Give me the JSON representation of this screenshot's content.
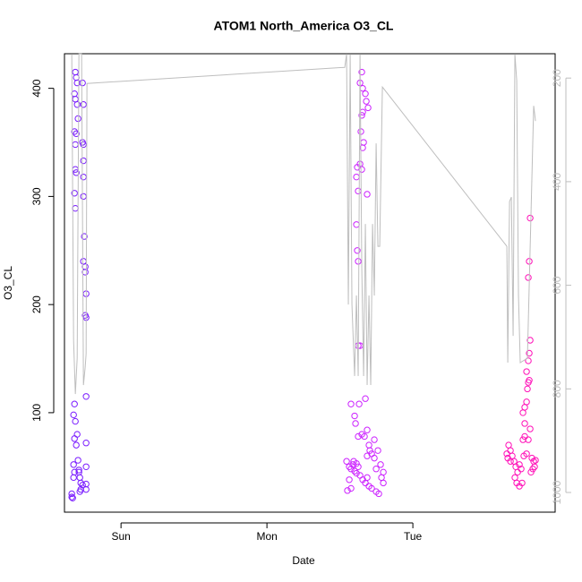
{
  "chart_data": {
    "type": "scatter",
    "title": "ATOM1 North_America O3_CL",
    "xlabel": "Date",
    "ylabel": "O3_CL",
    "xlim": [
      -9.3,
      71.4
    ],
    "xticks": [
      {
        "value": 0,
        "label": "Sun"
      },
      {
        "value": 24,
        "label": "Mon"
      },
      {
        "value": 48,
        "label": "Tue"
      }
    ],
    "ylim": [
      8,
      432
    ],
    "yticks": [
      100,
      200,
      300,
      400
    ],
    "y2lim": [
      1038,
      153
    ],
    "y2ticks": [
      200,
      400,
      600,
      800,
      1000
    ],
    "series": [
      {
        "color": "#7a1cff",
        "x": [
          -7.51,
          -7.36,
          -7.21,
          -7.65,
          -7.51,
          -7.21,
          -7.07,
          -7.65,
          -7.36,
          -7.51,
          -6.33,
          -6.18,
          -6.33,
          -6.18,
          -6.18,
          -6.18,
          -7.51,
          -7.36,
          -6.18,
          -7.65,
          -7.51,
          -6.04,
          -6.18,
          -5.89,
          -5.89,
          -5.74,
          -5.89,
          -5.74,
          -5.74,
          -7.65,
          -7.8,
          -7.51,
          -7.65,
          -7.21,
          -7.36,
          -5.74,
          -7.8,
          -7.65,
          -7.07,
          -6.92,
          -6.77,
          -6.62,
          -6.33,
          -5.74,
          -5.74,
          -6.77,
          -6.62,
          -7.8,
          -8.1,
          -7.95,
          -8.1,
          -6.92,
          -5.74
        ],
        "values": [
          415,
          410,
          405,
          395,
          390,
          385,
          372,
          360,
          358,
          348,
          405,
          385,
          350,
          348,
          333,
          318,
          325,
          322,
          300,
          303,
          289,
          263,
          240,
          235,
          230,
          210,
          190,
          188,
          115,
          108,
          98,
          92,
          76,
          80,
          70,
          72,
          52,
          45,
          56,
          47,
          40,
          35,
          33,
          34,
          29,
          27,
          29,
          40,
          22,
          21,
          25,
          45,
          50
        ]
      },
      {
        "color": "#cc22ff",
        "x": [
          37.83,
          38.42,
          38.57,
          39.16,
          40.19,
          39.6,
          40.48,
          39.01,
          40.78,
          41.66,
          41.22,
          41.66,
          37.1,
          37.54,
          37.83,
          38.13,
          38.42,
          38.72,
          39.01,
          39.31,
          39.75,
          40.19,
          40.48,
          40.78,
          41.22,
          41.96,
          42.4,
          37.54,
          37.83,
          37.24,
          41.96,
          42.69,
          43.14,
          42.84,
          43.14,
          38.27,
          38.72,
          39.01,
          39.31,
          39.31,
          39.6,
          39.75,
          40.19,
          40.34,
          40.63,
          39.75,
          39.6,
          39.45,
          39.9,
          39.75,
          38.86,
          39.31,
          39.6,
          38.72,
          39.01,
          40.48,
          38.72,
          38.86,
          39.01,
          40.04,
          40.92,
          40.48,
          42.25
        ],
        "values": [
          108,
          97,
          90,
          108,
          113,
          80,
          84,
          78,
          70,
          75,
          62,
          58,
          55,
          50,
          48,
          52,
          46,
          44,
          50,
          42,
          38,
          35,
          40,
          32,
          30,
          27,
          25,
          38,
          30,
          28,
          48,
          52,
          45,
          40,
          35,
          55,
          53,
          162,
          162,
          405,
          415,
          400,
          395,
          388,
          382,
          378,
          375,
          360,
          350,
          345,
          327,
          330,
          325,
          318,
          305,
          302,
          274,
          250,
          240,
          78,
          65,
          60,
          65
        ]
      },
      {
        "color": "#ff10b8",
        "x": [
          63.75,
          64.05,
          64.34,
          64.64,
          64.93,
          65.23,
          64.05,
          65.52,
          65.81,
          64.78,
          65.08,
          65.52,
          65.96,
          66.25,
          66.11,
          66.4,
          66.11,
          66.4,
          66.7,
          66.84,
          66.99,
          67.14,
          66.7,
          66.99,
          67.14,
          67.29,
          66.99,
          67.14,
          67.29,
          67.58,
          67.87,
          68.02,
          68.17,
          67.43,
          67.73,
          66.7,
          66.99,
          67.29,
          66.4,
          63.46,
          63.61
        ],
        "values": [
          70,
          65,
          60,
          55,
          50,
          45,
          55,
          52,
          48,
          40,
          35,
          32,
          35,
          60,
          75,
          90,
          100,
          105,
          110,
          122,
          128,
          130,
          138,
          148,
          155,
          167,
          225,
          240,
          280,
          58,
          55,
          50,
          56,
          45,
          48,
          62,
          75,
          85,
          78,
          62,
          58
        ]
      },
      {
        "color": "#bebebe",
        "axis": "y2",
        "x": [
          -8.1,
          -7.8,
          -7.51,
          -7.21,
          -6.92,
          -6.48,
          -6.18,
          -5.89,
          -5.74,
          -5.6,
          36.8,
          37.1,
          37.39,
          37.69,
          37.98,
          38.42,
          38.72,
          39.01,
          39.31,
          39.6,
          39.9,
          40.19,
          40.48,
          40.78,
          41.07,
          41.37,
          41.66,
          41.96,
          42.25,
          42.55,
          42.99,
          63.46,
          63.61,
          63.9,
          64.2,
          64.49,
          64.78,
          65.08,
          65.37,
          65.66,
          66.84,
          67.87,
          68.17
        ],
        "values": [
          153.4,
          706.2,
          809.9,
          740.8,
          153.4,
          153.4,
          792.6,
          758.0,
          732.1,
          210.4,
          179.3,
          153.4,
          637.1,
          153.4,
          637.1,
          775.3,
          619.8,
          775.3,
          153.4,
          568.0,
          775.3,
          481.6,
          792.6,
          619.8,
          792.6,
          481.6,
          619.8,
          326.1,
          524.8,
          524.8,
          217.3,
          524.8,
          749.4,
          438.4,
          429.8,
          697.6,
          153.4,
          204.4,
          619.8,
          749.4,
          740.8,
          253.6,
          282.9
        ]
      }
    ]
  }
}
